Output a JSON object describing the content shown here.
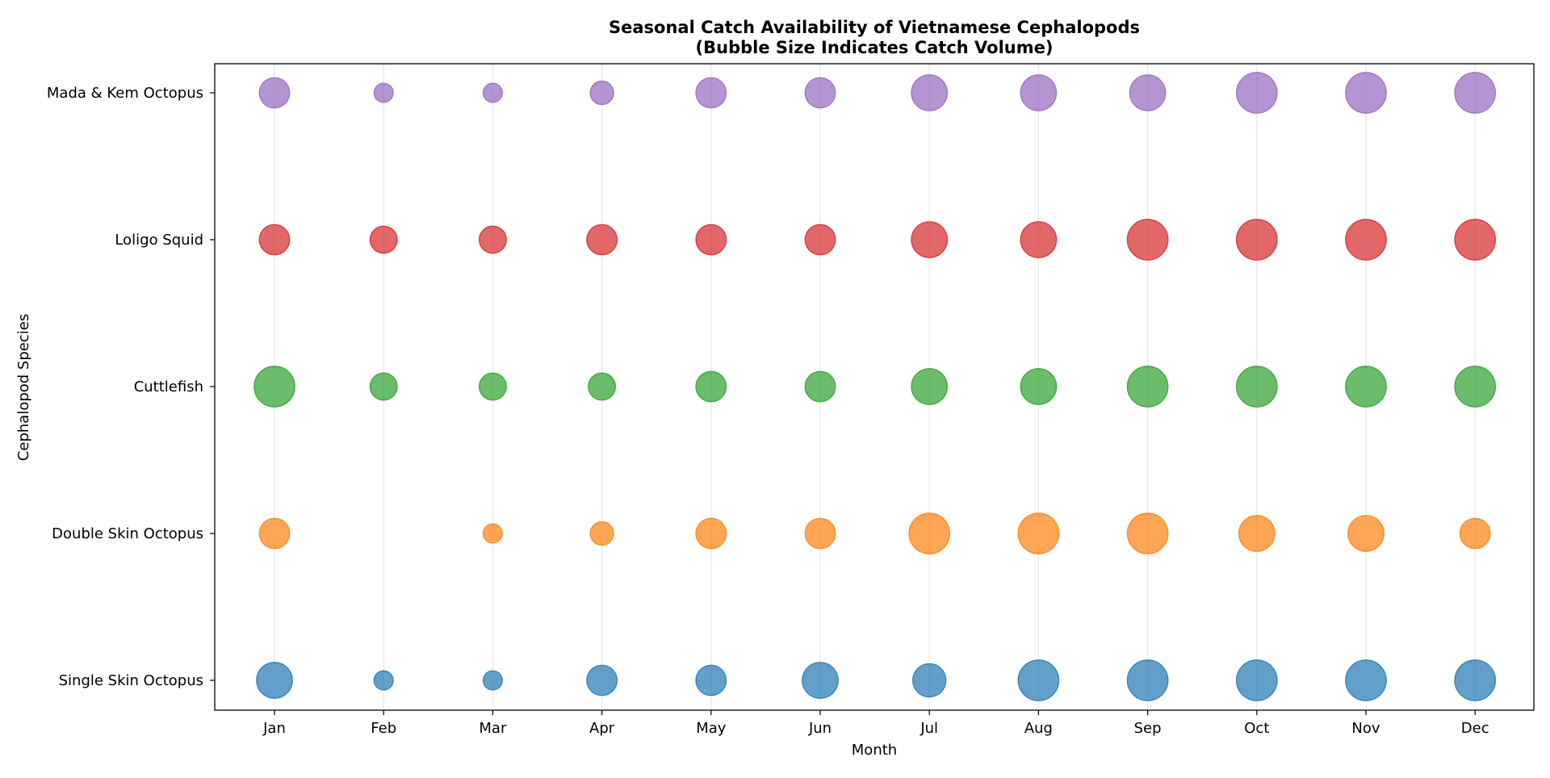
{
  "chart_data": {
    "type": "scatter",
    "title": "Seasonal Catch Availability of Vietnamese Cephalopods",
    "subtitle": "(Bubble Size Indicates Catch Volume)",
    "xlabel": "Month",
    "ylabel": "Cephalopod Species",
    "grid": "vertical",
    "categories": [
      "Jan",
      "Feb",
      "Mar",
      "Apr",
      "May",
      "Jun",
      "Jul",
      "Aug",
      "Sep",
      "Oct",
      "Nov",
      "Dec"
    ],
    "series": [
      {
        "name": "Single Skin Octopus",
        "color": "#1f77b4",
        "values": [
          7,
          2,
          2,
          5,
          5,
          7,
          6,
          9,
          9,
          9,
          9,
          9
        ]
      },
      {
        "name": "Double Skin Octopus",
        "color": "#ff7f0e",
        "values": [
          5,
          0,
          2,
          3,
          5,
          5,
          9,
          9,
          9,
          7,
          7,
          5
        ]
      },
      {
        "name": "Cuttlefish",
        "color": "#2ca02c",
        "values": [
          9,
          4,
          4,
          4,
          5,
          5,
          7,
          7,
          9,
          9,
          9,
          9
        ]
      },
      {
        "name": "Loligo Squid",
        "color": "#d62728",
        "values": [
          5,
          4,
          4,
          5,
          5,
          5,
          7,
          7,
          9,
          9,
          9,
          9
        ]
      },
      {
        "name": "Mada & Kem Octopus",
        "color": "#9467bd",
        "values": [
          5,
          2,
          2,
          3,
          5,
          5,
          7,
          7,
          7,
          9,
          9,
          9
        ]
      }
    ]
  }
}
